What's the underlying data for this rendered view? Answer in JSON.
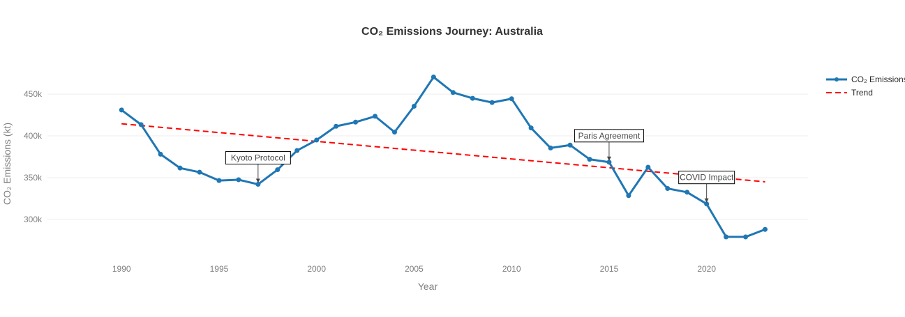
{
  "chart_data": {
    "type": "line",
    "title": "CO₂ Emissions Journey: Australia",
    "xlabel": "Year",
    "ylabel": "CO₂ Emissions (kt)",
    "xlim": [
      1986.2,
      2025.2
    ],
    "ylim": [
      254000,
      496000
    ],
    "x_ticks": [
      1990,
      1995,
      2000,
      2005,
      2010,
      2015,
      2020
    ],
    "y_ticks": [
      300000,
      350000,
      400000,
      450000
    ],
    "y_tick_labels": [
      "300k",
      "350k",
      "400k",
      "450k"
    ],
    "grid": {
      "x": false,
      "y": true
    },
    "legend_position": "top-right",
    "series": [
      {
        "name": "CO₂ Emissions",
        "color": "#1f77b4",
        "style": "solid-with-markers",
        "x": [
          1990,
          1991,
          1992,
          1993,
          1994,
          1995,
          1996,
          1997,
          1998,
          1999,
          2000,
          2001,
          2002,
          2003,
          2004,
          2005,
          2006,
          2007,
          2008,
          2009,
          2010,
          2011,
          2012,
          2013,
          2014,
          2015,
          2016,
          2017,
          2018,
          2019,
          2020,
          2021,
          2022,
          2023
        ],
        "y": [
          431000,
          413500,
          378000,
          361500,
          356500,
          346500,
          347500,
          342000,
          359500,
          382500,
          395000,
          411500,
          416500,
          423500,
          404500,
          435500,
          470500,
          452000,
          445000,
          440000,
          444500,
          409500,
          385500,
          389000,
          372000,
          368500,
          328500,
          362500,
          337000,
          332500,
          318500,
          279000,
          279000,
          288000
        ]
      },
      {
        "name": "Trend",
        "color": "#ff0000",
        "style": "dashed",
        "x": [
          1990,
          2023
        ],
        "y": [
          414500,
          345000
        ]
      }
    ],
    "annotations": [
      {
        "text": "Kyoto Protocol",
        "x": 1997,
        "y": 342000
      },
      {
        "text": "Paris Agreement",
        "x": 2015,
        "y": 368500
      },
      {
        "text": "COVID Impact",
        "x": 2020,
        "y": 318500
      }
    ]
  }
}
